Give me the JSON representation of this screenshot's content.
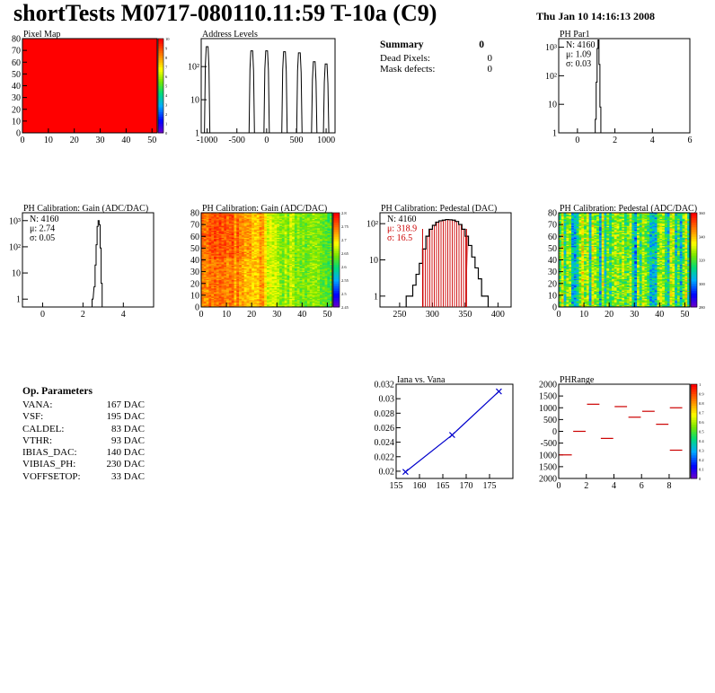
{
  "header": {
    "title": "shortTests M0717-080110.11:59 T-10a (C9)",
    "datestamp": "Thu Jan 10 14:16:13 2008"
  },
  "summary": {
    "heading": "Summary",
    "heading_value": "0",
    "rows": [
      {
        "label": "Dead Pixels:",
        "value": "0"
      },
      {
        "label": "Mask defects:",
        "value": "0"
      }
    ]
  },
  "op_params": {
    "heading": "Op. Parameters",
    "rows": [
      {
        "label": "VANA:",
        "value": "167 DAC"
      },
      {
        "label": "VSF:",
        "value": "195 DAC"
      },
      {
        "label": "CALDEL:",
        "value": "83 DAC"
      },
      {
        "label": "VTHR:",
        "value": "93 DAC"
      },
      {
        "label": "IBIAS_DAC:",
        "value": "140 DAC"
      },
      {
        "label": "VIBIAS_PH:",
        "value": "230 DAC"
      },
      {
        "label": "VOFFSETOP:",
        "value": "33 DAC"
      }
    ]
  },
  "chart_data": [
    {
      "id": "pixel-map",
      "type": "heatmap",
      "title": "Pixel Map",
      "xlim": [
        0,
        52
      ],
      "ylim": [
        0,
        80
      ],
      "xticks": [
        0,
        10,
        20,
        30,
        40,
        50
      ],
      "yticks": [
        0,
        10,
        20,
        30,
        40,
        50,
        60,
        70,
        80
      ],
      "uniform_value": 10,
      "fill_color": "#ff0000",
      "zlim": [
        0,
        10
      ],
      "zticks": [
        "0",
        "1",
        "2",
        "3",
        "4",
        "5",
        "6",
        "7",
        "8",
        "9",
        "10"
      ]
    },
    {
      "id": "address-levels",
      "type": "bar",
      "title": "Address Levels",
      "xlim": [
        -1100,
        1150
      ],
      "xticks": [
        "-1000",
        "-500",
        "0",
        "500",
        "1000"
      ],
      "log_y": true,
      "ylim": [
        1,
        700
      ],
      "yticks": [
        "1",
        "10",
        "10²"
      ],
      "peaks": [
        {
          "x": -1000,
          "y": 400
        },
        {
          "x": -250,
          "y": 300
        },
        {
          "x": 0,
          "y": 300
        },
        {
          "x": 300,
          "y": 280
        },
        {
          "x": 550,
          "y": 260
        },
        {
          "x": 800,
          "y": 140
        },
        {
          "x": 1000,
          "y": 120
        }
      ]
    },
    {
      "id": "ph-par1",
      "type": "bar",
      "title": "PH Par1",
      "xlim": [
        -1,
        6
      ],
      "xticks": [
        "0",
        "2",
        "4",
        "6"
      ],
      "log_y": true,
      "ylim": [
        1,
        2000
      ],
      "yticks": [
        "1",
        "10",
        "10²",
        "10³"
      ],
      "stats": [
        "N: 4160",
        "μ: 1.09",
        "σ: 0.03"
      ],
      "hist_x": [
        0.95,
        1.0,
        1.05,
        1.1,
        1.15,
        1.2
      ],
      "hist_y": [
        3,
        60,
        900,
        1800,
        250,
        8
      ]
    },
    {
      "id": "ph-gain-hist",
      "type": "bar",
      "title": "PH Calibration: Gain (ADC/DAC)",
      "xlim": [
        -1,
        5.5
      ],
      "xticks": [
        "0",
        "2",
        "4"
      ],
      "log_y": true,
      "ylim": [
        0.5,
        2000
      ],
      "yticks": [
        "1",
        "10",
        "10²",
        "10³"
      ],
      "stats": [
        "N: 4160",
        "μ: 2.74",
        "σ: 0.05"
      ],
      "hist_x": [
        2.45,
        2.55,
        2.6,
        2.65,
        2.7,
        2.75,
        2.8,
        2.85,
        2.9
      ],
      "hist_y": [
        1,
        3,
        20,
        120,
        600,
        1000,
        700,
        90,
        4
      ]
    },
    {
      "id": "ph-gain-map",
      "type": "heatmap",
      "title": "PH Calibration: Gain (ADC/DAC)",
      "xlim": [
        0,
        52
      ],
      "ylim": [
        0,
        80
      ],
      "xticks": [
        0,
        10,
        20,
        30,
        40,
        50
      ],
      "yticks": [
        0,
        10,
        20,
        30,
        40,
        50,
        60,
        70,
        80
      ],
      "zlim": [
        2.45,
        2.8
      ],
      "zticks": [
        "2.45",
        "2.5",
        "2.55",
        "2.6",
        "2.65",
        "2.7",
        "2.75",
        "2.8"
      ]
    },
    {
      "id": "ph-pedestal-hist",
      "type": "bar",
      "title": "PH Calibration: Pedestal (DAC)",
      "xlim": [
        220,
        420
      ],
      "xticks": [
        "250",
        "300",
        "350",
        "400"
      ],
      "log_y": true,
      "ylim": [
        0.5,
        200
      ],
      "yticks": [
        "1",
        "10",
        "10²"
      ],
      "stats": [
        "N: 4160",
        "μ: 318.9",
        "σ: 16.5"
      ],
      "cut_lines": [
        285,
        352
      ],
      "hist_x": [
        260,
        265,
        270,
        275,
        280,
        285,
        290,
        295,
        300,
        305,
        310,
        315,
        320,
        325,
        330,
        335,
        340,
        345,
        350,
        355,
        360,
        365,
        370,
        375,
        380
      ],
      "hist_y": [
        1,
        1,
        2,
        4,
        8,
        20,
        45,
        70,
        90,
        110,
        120,
        125,
        130,
        128,
        125,
        115,
        95,
        70,
        45,
        25,
        12,
        6,
        3,
        1,
        1
      ]
    },
    {
      "id": "ph-pedestal-map",
      "type": "heatmap",
      "title": "PH Calibration: Pedestal (ADC/DAC)",
      "xlim": [
        0,
        52
      ],
      "ylim": [
        0,
        80
      ],
      "xticks": [
        0,
        10,
        20,
        30,
        40,
        50
      ],
      "yticks": [
        0,
        10,
        20,
        30,
        40,
        50,
        60,
        70,
        80
      ],
      "zlim": [
        260,
        360
      ],
      "zticks": [
        "280",
        "300",
        "320",
        "340",
        "360"
      ]
    },
    {
      "id": "iana-vs-vana",
      "type": "line",
      "title": "Iana vs. Vana",
      "xlim": [
        155,
        180
      ],
      "ylim": [
        0.019,
        0.032
      ],
      "xticks": [
        "155",
        "160",
        "165",
        "170",
        "175"
      ],
      "yticks": [
        "0.02",
        "0.022",
        "0.024",
        "0.026",
        "0.028",
        "0.03",
        "0.032"
      ],
      "x": [
        157,
        167,
        177
      ],
      "y": [
        0.0199,
        0.025,
        0.031
      ]
    },
    {
      "id": "ph-range",
      "type": "scatter",
      "title": "PHRange",
      "xlim": [
        0,
        9.5
      ],
      "ylim": [
        -2000,
        2000
      ],
      "xticks": [
        "0",
        "2",
        "4",
        "6",
        "8"
      ],
      "yticks": [
        "2000",
        "1500",
        "1000",
        "500",
        "0",
        "-500",
        "1000",
        "1500",
        "2000"
      ],
      "segments": [
        {
          "x": 0.5,
          "y": -1000
        },
        {
          "x": 1.5,
          "y": 0
        },
        {
          "x": 2.5,
          "y": 1150
        },
        {
          "x": 3.5,
          "y": -300
        },
        {
          "x": 4.5,
          "y": 1050
        },
        {
          "x": 5.5,
          "y": 600
        },
        {
          "x": 6.5,
          "y": 850
        },
        {
          "x": 7.5,
          "y": 300
        },
        {
          "x": 8.5,
          "y": 1000
        },
        {
          "x": 8.5,
          "y": -800
        }
      ],
      "zlim": [
        0,
        1
      ],
      "zticks": [
        "0",
        "0.1",
        "0.2",
        "0.3",
        "0.4",
        "0.5",
        "0.6",
        "0.7",
        "0.8",
        "0.9",
        "1"
      ]
    }
  ]
}
